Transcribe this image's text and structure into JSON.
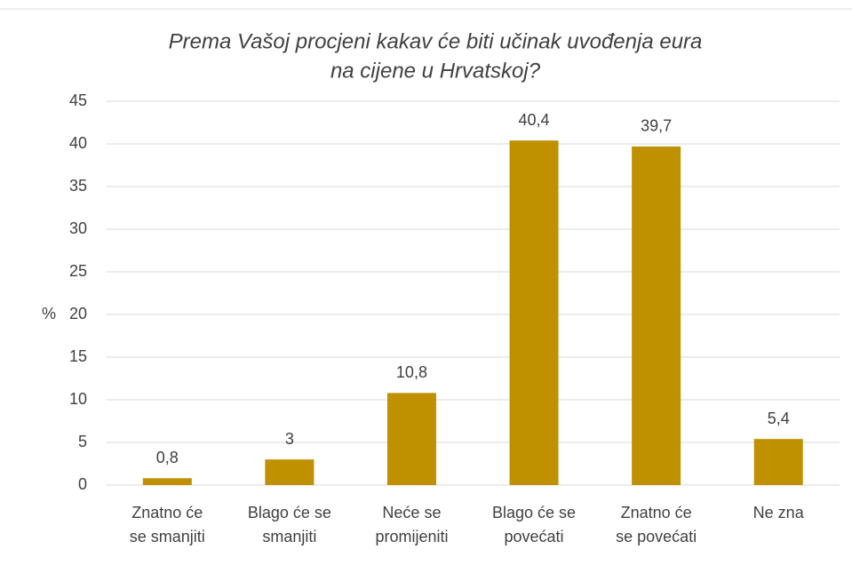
{
  "chart_data": {
    "type": "bar",
    "title": [
      "Prema Vašoj procjeni kakav će biti učinak uvođenja eura",
      "na cijene u Hrvatskoj?"
    ],
    "y_label": "%",
    "categories": [
      [
        "Znatno će",
        "se smanjiti"
      ],
      [
        "Blago će se",
        "smanjiti"
      ],
      [
        "Neće se",
        "promijeniti"
      ],
      [
        "Blago će se",
        "povećati"
      ],
      [
        "Znatno će",
        "se povećati"
      ],
      [
        "Ne zna"
      ]
    ],
    "values": [
      0.8,
      3,
      10.8,
      40.4,
      39.7,
      5.4
    ],
    "value_labels": [
      "0,8",
      "3",
      "10,8",
      "40,4",
      "39,7",
      "5,4"
    ],
    "color": "#bf9000",
    "ylim": [
      0,
      45
    ],
    "yticks": [
      0,
      5,
      10,
      15,
      20,
      25,
      30,
      35,
      40,
      45
    ],
    "grid": true
  }
}
